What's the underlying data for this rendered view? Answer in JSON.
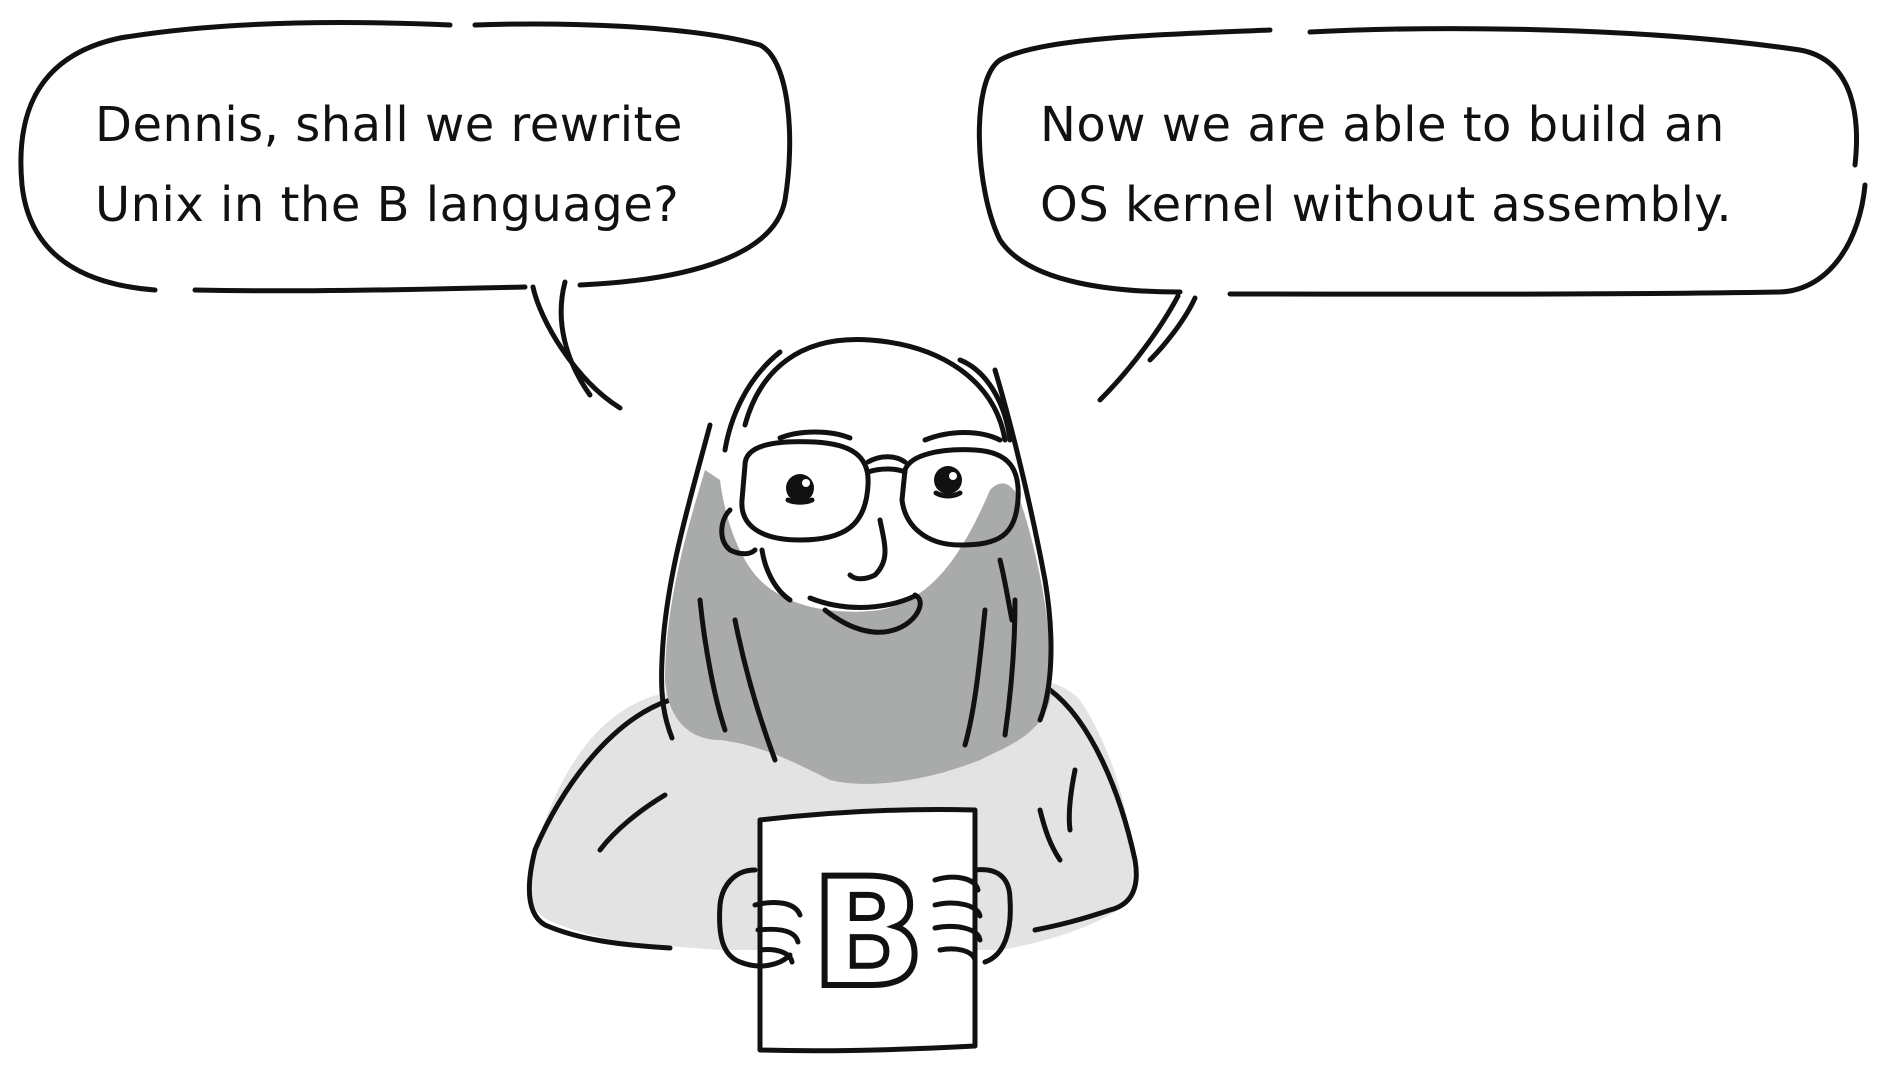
{
  "left_bubble": {
    "line1": "Dennis, shall we rewrite",
    "line2": "Unix in the B language?"
  },
  "right_bubble": {
    "line1": "Now we are able to build an",
    "line2": "OS kernel without assembly."
  },
  "book": {
    "letter": "B"
  },
  "colors": {
    "ink": "#111111",
    "beard": "#a9abab",
    "sweater": "#e3e3e3",
    "background": "#ffffff"
  }
}
